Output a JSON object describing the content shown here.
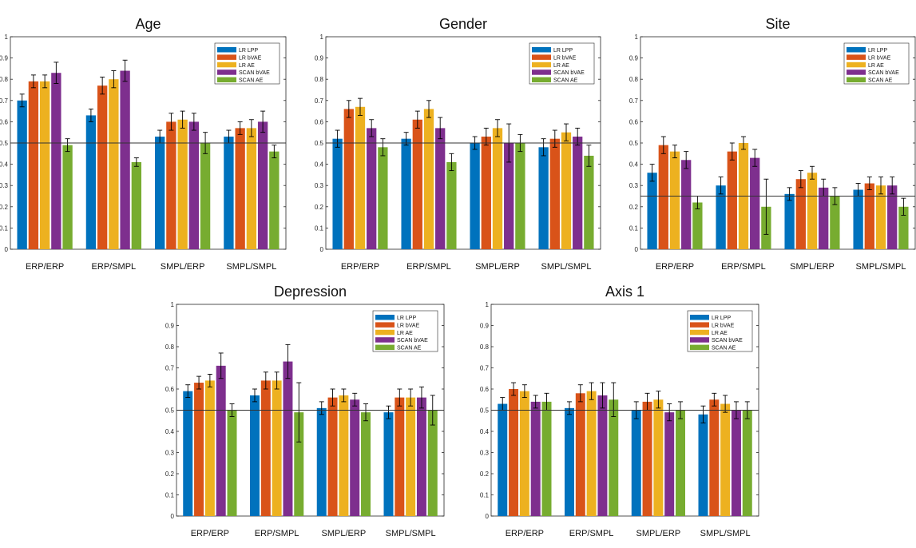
{
  "legend_labels": [
    "LR LPP",
    "LR bVAE",
    "LR AE",
    "SCAN bVAE",
    "SCAN AE"
  ],
  "series_colors": [
    "#0072BD",
    "#D95319",
    "#EDB120",
    "#7E2F8E",
    "#77AC30"
  ],
  "chart_data": [
    {
      "type": "bar",
      "title": "Age",
      "categories": [
        "ERP/ERP",
        "ERP/SMPL",
        "SMPL/ERP",
        "SMPL/SMPL"
      ],
      "ylim": [
        0,
        1
      ],
      "yticks": [
        "0",
        "0.1",
        "0.2",
        "0.3",
        "0.4",
        "0.5",
        "0.6",
        "0.7",
        "0.8",
        "0.9",
        "1"
      ],
      "reference_line": 0.5,
      "legend_position": "top-right",
      "grid": false,
      "series": [
        {
          "name": "LR LPP",
          "values": [
            0.7,
            0.63,
            0.53,
            0.53
          ],
          "errors": [
            0.03,
            0.03,
            0.03,
            0.03
          ]
        },
        {
          "name": "LR bVAE",
          "values": [
            0.79,
            0.77,
            0.6,
            0.57
          ],
          "errors": [
            0.03,
            0.04,
            0.04,
            0.03
          ]
        },
        {
          "name": "LR AE",
          "values": [
            0.79,
            0.8,
            0.61,
            0.57
          ],
          "errors": [
            0.03,
            0.04,
            0.04,
            0.04
          ]
        },
        {
          "name": "SCAN bVAE",
          "values": [
            0.83,
            0.84,
            0.6,
            0.6
          ],
          "errors": [
            0.05,
            0.05,
            0.04,
            0.05
          ]
        },
        {
          "name": "SCAN AE",
          "values": [
            0.49,
            0.41,
            0.5,
            0.46
          ],
          "errors": [
            0.03,
            0.02,
            0.05,
            0.03
          ]
        }
      ]
    },
    {
      "type": "bar",
      "title": "Gender",
      "categories": [
        "ERP/ERP",
        "ERP/SMPL",
        "SMPL/ERP",
        "SMPL/SMPL"
      ],
      "ylim": [
        0,
        1
      ],
      "yticks": [
        "0",
        "0.1",
        "0.2",
        "0.3",
        "0.4",
        "0.5",
        "0.6",
        "0.7",
        "0.8",
        "0.9",
        "1"
      ],
      "reference_line": 0.5,
      "legend_position": "top-right",
      "grid": false,
      "series": [
        {
          "name": "LR LPP",
          "values": [
            0.52,
            0.52,
            0.5,
            0.48
          ],
          "errors": [
            0.04,
            0.03,
            0.03,
            0.04
          ]
        },
        {
          "name": "LR bVAE",
          "values": [
            0.66,
            0.61,
            0.53,
            0.52
          ],
          "errors": [
            0.04,
            0.04,
            0.04,
            0.04
          ]
        },
        {
          "name": "LR AE",
          "values": [
            0.67,
            0.66,
            0.57,
            0.55
          ],
          "errors": [
            0.04,
            0.04,
            0.04,
            0.04
          ]
        },
        {
          "name": "SCAN bVAE",
          "values": [
            0.57,
            0.57,
            0.5,
            0.53
          ],
          "errors": [
            0.04,
            0.05,
            0.09,
            0.04
          ]
        },
        {
          "name": "SCAN AE",
          "values": [
            0.48,
            0.41,
            0.5,
            0.44
          ],
          "errors": [
            0.04,
            0.04,
            0.04,
            0.05
          ]
        }
      ]
    },
    {
      "type": "bar",
      "title": "Site",
      "categories": [
        "ERP/ERP",
        "ERP/SMPL",
        "SMPL/ERP",
        "SMPL/SMPL"
      ],
      "ylim": [
        0,
        1
      ],
      "yticks": [
        "0",
        "0.1",
        "0.2",
        "0.3",
        "0.4",
        "0.5",
        "0.6",
        "0.7",
        "0.8",
        "0.9",
        "1"
      ],
      "reference_line": 0.25,
      "legend_position": "top-right",
      "grid": false,
      "series": [
        {
          "name": "LR LPP",
          "values": [
            0.36,
            0.3,
            0.26,
            0.28
          ],
          "errors": [
            0.04,
            0.04,
            0.03,
            0.03
          ]
        },
        {
          "name": "LR bVAE",
          "values": [
            0.49,
            0.46,
            0.33,
            0.31
          ],
          "errors": [
            0.04,
            0.04,
            0.04,
            0.03
          ]
        },
        {
          "name": "LR AE",
          "values": [
            0.46,
            0.5,
            0.36,
            0.3
          ],
          "errors": [
            0.03,
            0.03,
            0.03,
            0.04
          ]
        },
        {
          "name": "SCAN bVAE",
          "values": [
            0.42,
            0.43,
            0.29,
            0.3
          ],
          "errors": [
            0.04,
            0.04,
            0.04,
            0.04
          ]
        },
        {
          "name": "SCAN AE",
          "values": [
            0.22,
            0.2,
            0.25,
            0.2
          ],
          "errors": [
            0.03,
            0.13,
            0.04,
            0.04
          ]
        }
      ]
    },
    {
      "type": "bar",
      "title": "Depression",
      "categories": [
        "ERP/ERP",
        "ERP/SMPL",
        "SMPL/ERP",
        "SMPL/SMPL"
      ],
      "ylim": [
        0,
        1
      ],
      "yticks": [
        "0",
        "0.1",
        "0.2",
        "0.3",
        "0.4",
        "0.5",
        "0.6",
        "0.7",
        "0.8",
        "0.9",
        "1"
      ],
      "reference_line": 0.5,
      "legend_position": "top-right",
      "grid": false,
      "series": [
        {
          "name": "LR LPP",
          "values": [
            0.59,
            0.57,
            0.51,
            0.49
          ],
          "errors": [
            0.03,
            0.03,
            0.03,
            0.03
          ]
        },
        {
          "name": "LR bVAE",
          "values": [
            0.63,
            0.64,
            0.56,
            0.56
          ],
          "errors": [
            0.03,
            0.04,
            0.04,
            0.04
          ]
        },
        {
          "name": "LR AE",
          "values": [
            0.64,
            0.64,
            0.57,
            0.56
          ],
          "errors": [
            0.03,
            0.04,
            0.03,
            0.04
          ]
        },
        {
          "name": "SCAN bVAE",
          "values": [
            0.71,
            0.73,
            0.55,
            0.56
          ],
          "errors": [
            0.06,
            0.08,
            0.03,
            0.05
          ]
        },
        {
          "name": "SCAN AE",
          "values": [
            0.5,
            0.49,
            0.49,
            0.5
          ],
          "errors": [
            0.03,
            0.14,
            0.04,
            0.07
          ]
        }
      ]
    },
    {
      "type": "bar",
      "title": "Axis 1",
      "categories": [
        "ERP/ERP",
        "ERP/SMPL",
        "SMPL/ERP",
        "SMPL/SMPL"
      ],
      "ylim": [
        0,
        1
      ],
      "yticks": [
        "0",
        "0.1",
        "0.2",
        "0.3",
        "0.4",
        "0.5",
        "0.6",
        "0.7",
        "0.8",
        "0.9",
        "1"
      ],
      "reference_line": 0.5,
      "legend_position": "top-right",
      "grid": false,
      "series": [
        {
          "name": "LR LPP",
          "values": [
            0.53,
            0.51,
            0.5,
            0.48
          ],
          "errors": [
            0.03,
            0.03,
            0.04,
            0.04
          ]
        },
        {
          "name": "LR bVAE",
          "values": [
            0.6,
            0.58,
            0.54,
            0.55
          ],
          "errors": [
            0.03,
            0.04,
            0.04,
            0.03
          ]
        },
        {
          "name": "LR AE",
          "values": [
            0.59,
            0.59,
            0.55,
            0.53
          ],
          "errors": [
            0.03,
            0.04,
            0.04,
            0.04
          ]
        },
        {
          "name": "SCAN bVAE",
          "values": [
            0.54,
            0.57,
            0.49,
            0.5
          ],
          "errors": [
            0.03,
            0.06,
            0.04,
            0.04
          ]
        },
        {
          "name": "SCAN AE",
          "values": [
            0.54,
            0.55,
            0.5,
            0.5
          ],
          "errors": [
            0.04,
            0.08,
            0.04,
            0.04
          ]
        }
      ]
    }
  ]
}
